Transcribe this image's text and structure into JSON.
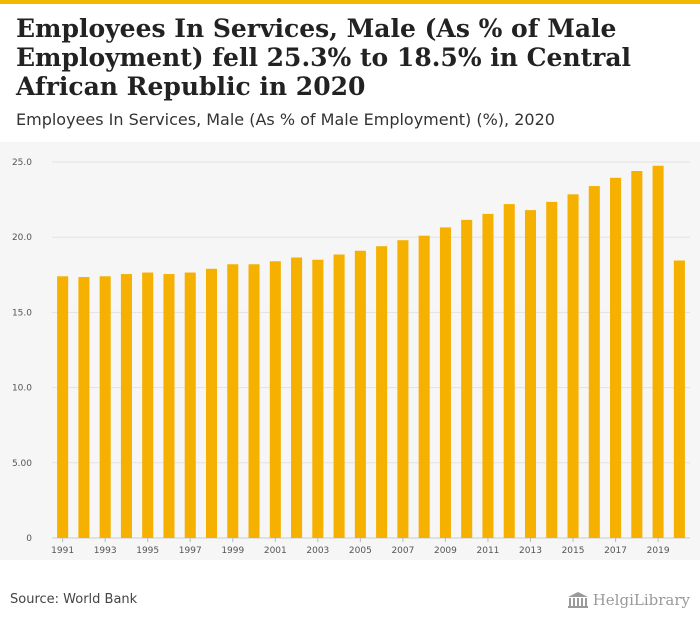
{
  "header": {
    "title": "Employees In Services, Male (As % of Male Employment) fell 25.3% to 18.5% in Central African Republic in 2020",
    "subtitle": "Employees In Services, Male (As % of Male Employment) (%), 2020"
  },
  "footer": {
    "source": "Source: World Bank",
    "logo_text": "HelgiLibrary",
    "logo_icon": "library-building-icon"
  },
  "colors": {
    "bar": "#f5b000",
    "accent": "#f5b800",
    "panel": "#f6f6f6",
    "grid": "#e2e2e2"
  },
  "chart_data": {
    "type": "bar",
    "title": "Employees In Services, Male (As % of Male Employment) (%), 2020",
    "xlabel": "",
    "ylabel": "",
    "ylim": [
      0,
      25
    ],
    "grid": true,
    "yticks": [
      0,
      5,
      10,
      15,
      20,
      25
    ],
    "ytick_labels": [
      "0",
      "5.00",
      "10.0",
      "15.0",
      "20.0",
      "25.0"
    ],
    "categories": [
      "1991",
      "1992",
      "1993",
      "1994",
      "1995",
      "1996",
      "1997",
      "1998",
      "1999",
      "2000",
      "2001",
      "2002",
      "2003",
      "2004",
      "2005",
      "2006",
      "2007",
      "2008",
      "2009",
      "2010",
      "2011",
      "2012",
      "2013",
      "2014",
      "2015",
      "2016",
      "2017",
      "2018",
      "2019",
      "2020"
    ],
    "xtick_labels": [
      "1991",
      "1993",
      "1995",
      "1997",
      "1999",
      "2001",
      "2003",
      "2005",
      "2007",
      "2009",
      "2011",
      "2013",
      "2015",
      "2017",
      "2019"
    ],
    "values": [
      17.4,
      17.35,
      17.4,
      17.55,
      17.65,
      17.55,
      17.65,
      17.9,
      18.2,
      18.2,
      18.4,
      18.65,
      18.5,
      18.85,
      19.1,
      19.4,
      19.8,
      20.1,
      20.65,
      21.15,
      21.55,
      22.2,
      21.8,
      22.35,
      22.85,
      23.4,
      23.95,
      24.4,
      24.75,
      18.45
    ]
  }
}
